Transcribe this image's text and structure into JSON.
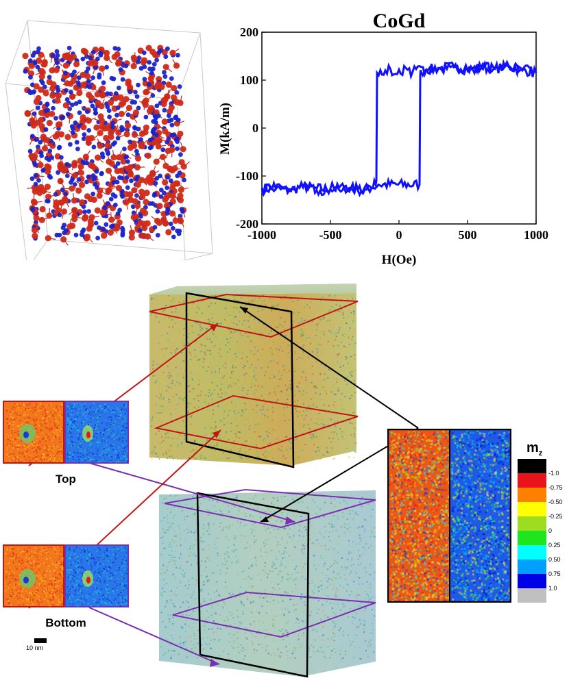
{
  "chart_data": {
    "type": "line",
    "title": "CoGd",
    "xlabel": "H(Oe)",
    "ylabel": "M(kA/m)",
    "xlim": [
      -1000,
      1000
    ],
    "ylim": [
      -200,
      200
    ],
    "xticks": [
      -1000,
      -500,
      0,
      500,
      1000
    ],
    "yticks": [
      -200,
      -100,
      0,
      100,
      200
    ],
    "grid": false,
    "series": [
      {
        "color": "#1010ff",
        "branch": "ascending",
        "x": [
          -1000,
          -900,
          -800,
          -700,
          -600,
          -500,
          -400,
          -300,
          -200,
          -150,
          150,
          155,
          160,
          200,
          300,
          400,
          500,
          600,
          700,
          800,
          900,
          1000
        ],
        "y": [
          -125,
          -128,
          -130,
          -122,
          -126,
          -128,
          -124,
          -130,
          -125,
          -118,
          -118,
          110,
          118,
          122,
          125,
          128,
          122,
          126,
          124,
          128,
          120,
          118
        ]
      },
      {
        "color": "#1010ff",
        "branch": "descending",
        "x": [
          1000,
          900,
          800,
          700,
          600,
          500,
          400,
          300,
          200,
          100,
          0,
          -100,
          -160,
          -165,
          -170,
          -200,
          -300,
          -400,
          -500,
          -600,
          -700,
          -800,
          -900,
          -1000
        ],
        "y": [
          115,
          122,
          130,
          124,
          126,
          120,
          128,
          125,
          122,
          118,
          122,
          120,
          115,
          -110,
          -118,
          -125,
          -128,
          -122,
          -126,
          -130,
          -124,
          -128,
          -125,
          -130
        ]
      }
    ]
  },
  "colorbar": {
    "title": "m",
    "title_sub": "z",
    "labels": [
      "-1.0",
      "-0.75",
      "-0.50",
      "-0.25",
      "0",
      "0.25",
      "0.50",
      "0.75",
      "1.0"
    ],
    "colors": [
      "#000000",
      "#e8141a",
      "#ff7f00",
      "#ffff00",
      "#9ddc1e",
      "#1ee61e",
      "#00ffff",
      "#00a0ff",
      "#0000e6",
      "#c0c0c0"
    ]
  },
  "panels": {
    "top_label": "Top",
    "bottom_label": "Bottom",
    "scale_label": "10 nm"
  },
  "colors": {
    "red_plane": "#c01515",
    "purple_plane": "#7b2fb0",
    "black_plane": "#000000",
    "hysteresis_line": "#1010ff"
  }
}
